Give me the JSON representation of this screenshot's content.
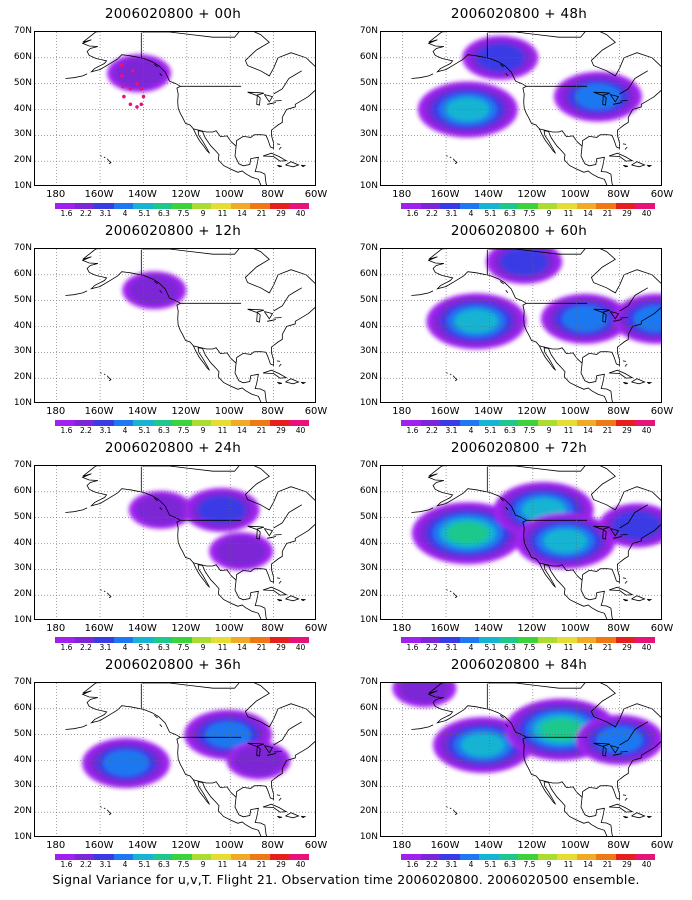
{
  "figure": {
    "caption": "Signal Variance for u,v,T. Flight 21. Observation time 2006020800. 2006020500 ensemble."
  },
  "axes": {
    "lat_labels": [
      "70N",
      "60N",
      "50N",
      "40N",
      "30N",
      "20N",
      "10N"
    ],
    "lon_labels": [
      "180",
      "160W",
      "140W",
      "120W",
      "100W",
      "80W",
      "60W"
    ]
  },
  "colorbar": {
    "labels": [
      "1.6",
      "2.2",
      "3.1",
      "4",
      "5.1",
      "6.3",
      "7.5",
      "9",
      "11",
      "14",
      "21",
      "29",
      "40"
    ],
    "colors": [
      "#a020f0",
      "#7c26d6",
      "#3b3be6",
      "#1e78f0",
      "#14b4d2",
      "#1ec88c",
      "#3cd23c",
      "#aadc32",
      "#e6dc32",
      "#f0aa28",
      "#f07814",
      "#e61e1e",
      "#e6147a"
    ]
  },
  "chart_data": [
    {
      "type": "map",
      "panel": "2006020800 + 00h",
      "forecast_hour": 0,
      "field": "signal variance",
      "max_level": "1.6-2.2",
      "blobs": [
        {
          "lon": -142,
          "lat": 54,
          "level": 1
        }
      ],
      "observation_points": [
        {
          "lon": -150,
          "lat": 57
        },
        {
          "lon": -150,
          "lat": 53
        },
        {
          "lon": -149.5,
          "lat": 49
        },
        {
          "lon": -149,
          "lat": 45
        },
        {
          "lon": -146,
          "lat": 42
        },
        {
          "lon": -143,
          "lat": 41
        },
        {
          "lon": -141,
          "lat": 42
        },
        {
          "lon": -140,
          "lat": 45
        },
        {
          "lon": -141,
          "lat": 48
        },
        {
          "lon": -145,
          "lat": 55
        },
        {
          "lon": -143,
          "lat": 50
        },
        {
          "lon": -146,
          "lat": 48
        }
      ]
    },
    {
      "type": "map",
      "panel": "2006020800 + 12h",
      "forecast_hour": 12,
      "field": "signal variance",
      "max_level": "1.6-2.2",
      "blobs": [
        {
          "lon": -135,
          "lat": 54,
          "level": 1
        }
      ]
    },
    {
      "type": "map",
      "panel": "2006020800 + 24h",
      "forecast_hour": 24,
      "field": "signal variance",
      "max_level": "2.2-3.1",
      "blobs": [
        {
          "lon": -132,
          "lat": 53,
          "level": 1
        },
        {
          "lon": -104,
          "lat": 53,
          "level": 2
        },
        {
          "lon": -95,
          "lat": 37,
          "level": 1
        }
      ]
    },
    {
      "type": "map",
      "panel": "2006020800 + 36h",
      "forecast_hour": 36,
      "field": "signal variance",
      "max_level": "3.1-4",
      "blobs": [
        {
          "lon": -148,
          "lat": 39,
          "level": 3
        },
        {
          "lon": -101,
          "lat": 50,
          "level": 3
        },
        {
          "lon": -87,
          "lat": 40,
          "level": 1
        }
      ]
    },
    {
      "type": "map",
      "panel": "2006020800 + 48h",
      "forecast_hour": 48,
      "field": "signal variance",
      "max_level": "4-5.1",
      "blobs": [
        {
          "lon": -150,
          "lat": 40,
          "level": 4
        },
        {
          "lon": -90,
          "lat": 45,
          "level": 3
        },
        {
          "lon": -135,
          "lat": 60,
          "level": 2
        }
      ]
    },
    {
      "type": "map",
      "panel": "2006020800 + 60h",
      "forecast_hour": 60,
      "field": "signal variance",
      "max_level": "4-5.1",
      "blobs": [
        {
          "lon": -146,
          "lat": 42,
          "level": 4
        },
        {
          "lon": -124,
          "lat": 65,
          "level": 2
        },
        {
          "lon": -96,
          "lat": 43,
          "level": 3
        },
        {
          "lon": -63,
          "lat": 43,
          "level": 3
        }
      ]
    },
    {
      "type": "map",
      "panel": "2006020800 + 72h",
      "forecast_hour": 72,
      "field": "signal variance",
      "max_level": "5.1-6.3",
      "blobs": [
        {
          "lon": -150,
          "lat": 44,
          "level": 5
        },
        {
          "lon": -115,
          "lat": 53,
          "level": 4
        },
        {
          "lon": -105,
          "lat": 41,
          "level": 4
        },
        {
          "lon": -72,
          "lat": 47,
          "level": 2
        }
      ]
    },
    {
      "type": "map",
      "panel": "2006020800 + 84h",
      "forecast_hour": 84,
      "field": "signal variance",
      "max_level": "5.1-6.3",
      "blobs": [
        {
          "lon": -143,
          "lat": 46,
          "level": 4
        },
        {
          "lon": -107,
          "lat": 52,
          "level": 5
        },
        {
          "lon": -80,
          "lat": 48,
          "level": 3
        },
        {
          "lon": -170,
          "lat": 68,
          "level": 1
        }
      ]
    }
  ]
}
